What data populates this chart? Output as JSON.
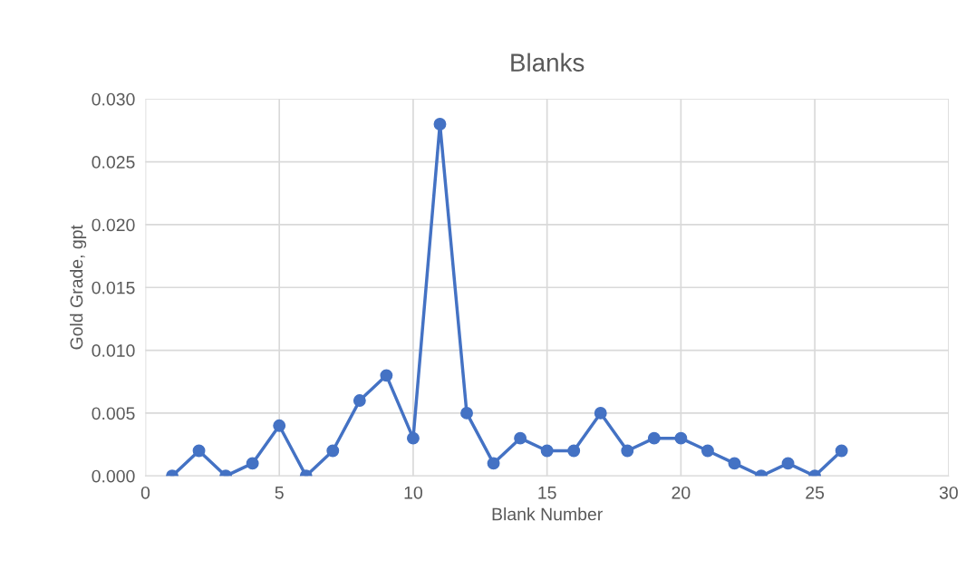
{
  "chart_data": {
    "type": "line",
    "title": "Blanks",
    "xlabel": "Blank Number",
    "ylabel": "Gold Grade, gpt",
    "x": [
      1,
      2,
      3,
      4,
      5,
      6,
      7,
      8,
      9,
      10,
      11,
      12,
      13,
      14,
      15,
      16,
      17,
      18,
      19,
      20,
      21,
      22,
      23,
      24,
      25,
      26
    ],
    "series": [
      {
        "color": "#4472c4",
        "values": [
          0,
          0.002,
          0,
          0.001,
          0.004,
          0,
          0.002,
          0.006,
          0.008,
          0.003,
          0.028,
          0.005,
          0.001,
          0.003,
          0.002,
          0.002,
          0.005,
          0.002,
          0.003,
          0.003,
          0.002,
          0.001,
          0,
          0.001,
          0,
          0.002
        ]
      }
    ],
    "xlim": [
      0,
      30
    ],
    "xticks": [
      0,
      5,
      10,
      15,
      20,
      25,
      30
    ],
    "ylim": [
      0,
      0.03
    ],
    "yticks": [
      {
        "value": 0,
        "label": "0.000"
      },
      {
        "value": 0.005,
        "label": "0.005"
      },
      {
        "value": 0.01,
        "label": "0.010"
      },
      {
        "value": 0.015,
        "label": "0.015"
      },
      {
        "value": 0.02,
        "label": "0.020"
      },
      {
        "value": 0.025,
        "label": "0.025"
      },
      {
        "value": 0.03,
        "label": "0.030"
      }
    ],
    "grid": true,
    "marker": "circle",
    "line_style": "solid",
    "legend": false
  }
}
